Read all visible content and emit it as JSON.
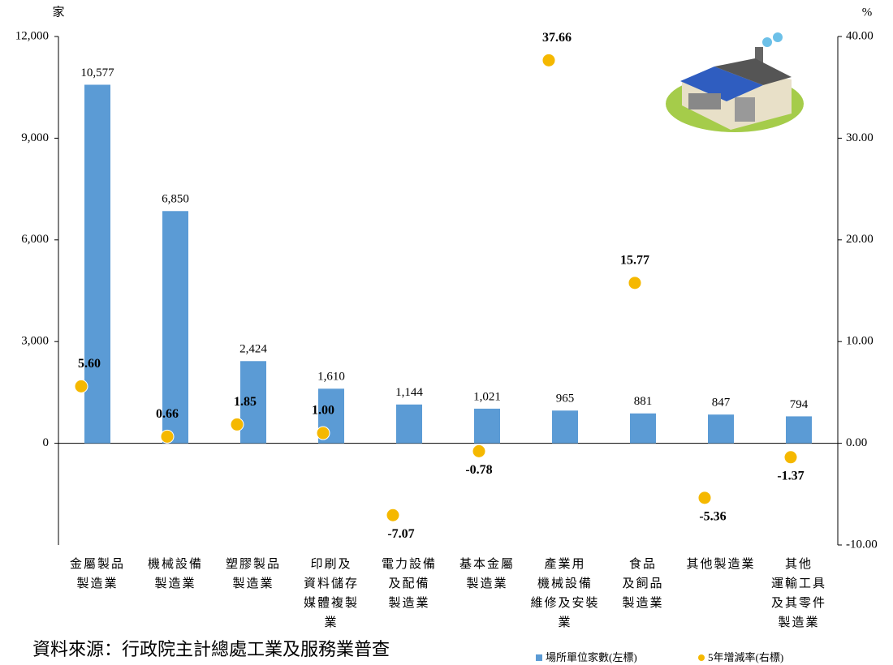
{
  "chart_data": {
    "type": "bar",
    "categories": [
      "金屬製品\n製造業",
      "機械設備\n製造業",
      "塑膠製品\n製造業",
      "印刷及\n資料儲存\n媒體複製\n業",
      "電力設備\n及配備\n製造業",
      "基本金屬\n製造業",
      "產業用\n機械設備\n維修及安裝\n業",
      "食品\n及飼品\n製造業",
      "其他製造業",
      "其他\n運輸工具\n及其零件\n製造業"
    ],
    "series": [
      {
        "name": "場所單位家數(左標)",
        "type": "bar",
        "color": "#5b9bd5",
        "values": [
          10577,
          6850,
          2424,
          1610,
          1144,
          1021,
          965,
          881,
          847,
          794
        ],
        "value_labels": [
          "10,577",
          "6,850",
          "2,424",
          "1,610",
          "1,144",
          "1,021",
          "965",
          "881",
          "847",
          "794"
        ]
      },
      {
        "name": "5年增減率(右標)",
        "type": "scatter",
        "axis": "y2",
        "color": "#f5b800",
        "values": [
          5.6,
          0.66,
          1.85,
          1.0,
          -7.07,
          -0.78,
          37.66,
          15.77,
          -5.36,
          -1.37
        ],
        "value_labels": [
          "5.60",
          "0.66",
          "1.85",
          "1.00",
          "-7.07",
          "-0.78",
          "37.66",
          "15.77",
          "-5.36",
          "-1.37"
        ]
      }
    ],
    "ylabel": "家",
    "y2label": "%",
    "ylim": [
      -3000,
      12000
    ],
    "yticks": [
      0,
      {
        "value": 3000,
        "label": "3,000"
      },
      {
        "value": 6000,
        "label": "6,000"
      },
      {
        "value": 9000,
        "label": "9,000"
      },
      {
        "value": 12000,
        "label": "12,000"
      }
    ],
    "y2lim": [
      -10,
      40
    ],
    "y2ticks": [
      {
        "value": -10,
        "label": "-10.00"
      },
      {
        "value": 0,
        "label": "0.00"
      },
      {
        "value": 10,
        "label": "10.00"
      },
      {
        "value": 20,
        "label": "20.00"
      },
      {
        "value": 30,
        "label": "30.00"
      },
      {
        "value": 40,
        "label": "40.00"
      }
    ],
    "legend": "bottom-right",
    "source": "資料來源：行政院主計總處工業及服務業普查"
  }
}
